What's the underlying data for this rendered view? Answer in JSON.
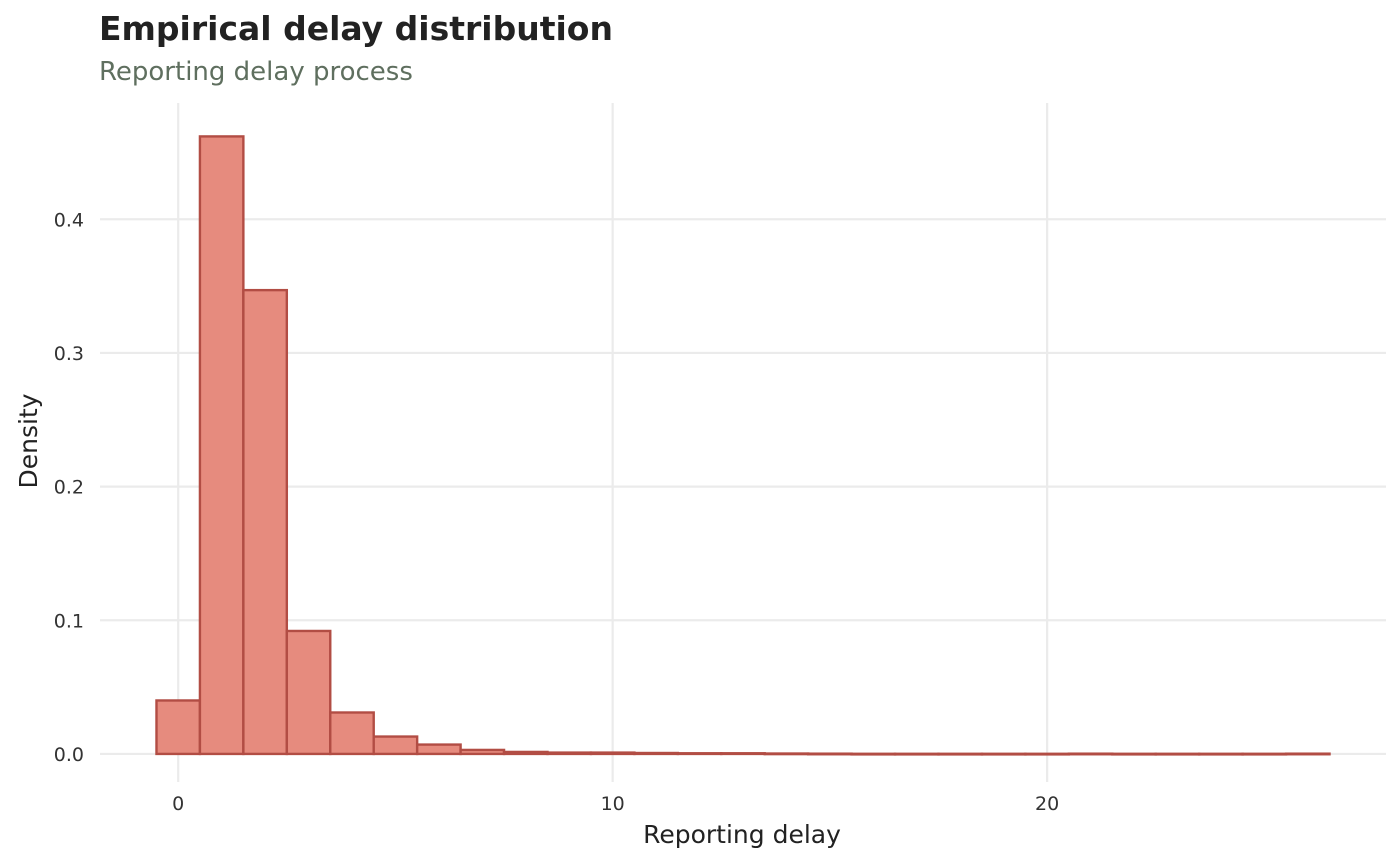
{
  "chart_data": {
    "type": "bar",
    "title": "Empirical delay distribution",
    "subtitle": "Reporting delay process",
    "xlabel": "Reporting delay",
    "ylabel": "Density",
    "bin_width": 1,
    "bins": [
      {
        "x": 0,
        "density": 0.04
      },
      {
        "x": 1,
        "density": 0.462
      },
      {
        "x": 2,
        "density": 0.347
      },
      {
        "x": 3,
        "density": 0.092
      },
      {
        "x": 4,
        "density": 0.031
      },
      {
        "x": 5,
        "density": 0.013
      },
      {
        "x": 6,
        "density": 0.007
      },
      {
        "x": 7,
        "density": 0.003
      },
      {
        "x": 8,
        "density": 0.0015
      },
      {
        "x": 9,
        "density": 0.001
      },
      {
        "x": 10,
        "density": 0.001
      },
      {
        "x": 11,
        "density": 0.0007
      },
      {
        "x": 12,
        "density": 0.0005
      },
      {
        "x": 13,
        "density": 0.0005
      },
      {
        "x": 14,
        "density": 0.0003
      },
      {
        "x": 15,
        "density": 0.0002
      },
      {
        "x": 16,
        "density": 0.0001
      },
      {
        "x": 17,
        "density": 0.0001
      },
      {
        "x": 18,
        "density": 0.0001
      },
      {
        "x": 19,
        "density": 0.0001
      },
      {
        "x": 20,
        "density": 0.0001
      },
      {
        "x": 21,
        "density": 0.0002
      },
      {
        "x": 22,
        "density": 0.0001
      },
      {
        "x": 23,
        "density": 0.0001
      },
      {
        "x": 24,
        "density": 0.0001
      },
      {
        "x": 25,
        "density": 0.0001
      },
      {
        "x": 26,
        "density": 0.0002
      }
    ],
    "xlim": [
      -1.8,
      27.8
    ],
    "ylim": [
      -0.021,
      0.487
    ],
    "x_ticks": [
      0,
      10,
      20
    ],
    "y_ticks": [
      0.0,
      0.1,
      0.2,
      0.3,
      0.4
    ],
    "x_tick_labels": [
      "0",
      "10",
      "20"
    ],
    "y_tick_labels": [
      "0.0",
      "0.1",
      "0.2",
      "0.3",
      "0.4"
    ],
    "grid": true,
    "bar_fill": "#e68b7e",
    "bar_stroke": "#b24d44",
    "grid_color": "#ebebeb"
  }
}
